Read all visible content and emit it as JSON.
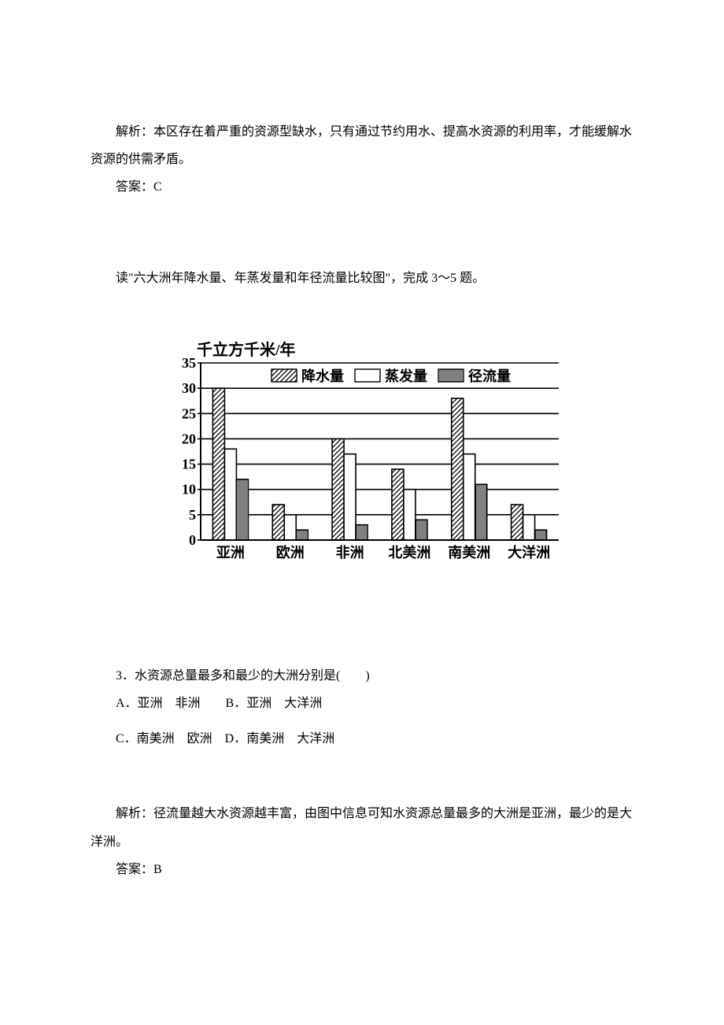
{
  "passage1": {
    "analysis": "解析：本区存在着严重的资源型缺水，只有通过节约用水、提高水资源的利用率，才能缓解水资源的供需矛盾。",
    "answer": "答案：C"
  },
  "chart_intro": "读\"六大洲年降水量、年蒸发量和年径流量比较图\"，完成 3～5 题。",
  "chart": {
    "type": "bar",
    "y_title": "千立方千米/年",
    "y_title_fontsize": 20,
    "ylim": [
      0,
      35
    ],
    "ytick_step": 5,
    "y_ticks": [
      0,
      5,
      10,
      15,
      20,
      25,
      30,
      35
    ],
    "grid_color": "#000000",
    "background_color": "#ffffff",
    "axis_color": "#000000",
    "label_fontsize": 18,
    "cat_fontsize": 18,
    "bar_stroke": "#000000",
    "categories": [
      "亚洲",
      "欧洲",
      "非洲",
      "北美洲",
      "南美洲",
      "大洋洲"
    ],
    "series": [
      {
        "name": "降水量",
        "pattern": "diag",
        "values": [
          30,
          7,
          20,
          14,
          28,
          7
        ]
      },
      {
        "name": "蒸发量",
        "pattern": "none",
        "values": [
          18,
          5,
          17,
          10,
          17,
          5
        ]
      },
      {
        "name": "径流量",
        "pattern": "vert",
        "values": [
          12,
          2,
          3,
          4,
          11,
          2
        ]
      }
    ],
    "legend": {
      "items": [
        {
          "pattern": "diag",
          "label": "降水量"
        },
        {
          "pattern": "none",
          "label": "蒸发量"
        },
        {
          "pattern": "vert",
          "label": "径流量"
        }
      ]
    }
  },
  "question3": {
    "stem": "3．水资源总量最多和最少的大洲分别是(　　)",
    "choiceAB": "A．亚洲　非洲　　B．亚洲　大洋洲",
    "choiceCD": "C．南美洲　欧洲　D．南美洲　大洋洲",
    "analysis": "解析：径流量越大水资源越丰富，由图中信息可知水资源总量最多的大洲是亚洲，最少的是大洋洲。",
    "answer": "答案：B"
  }
}
